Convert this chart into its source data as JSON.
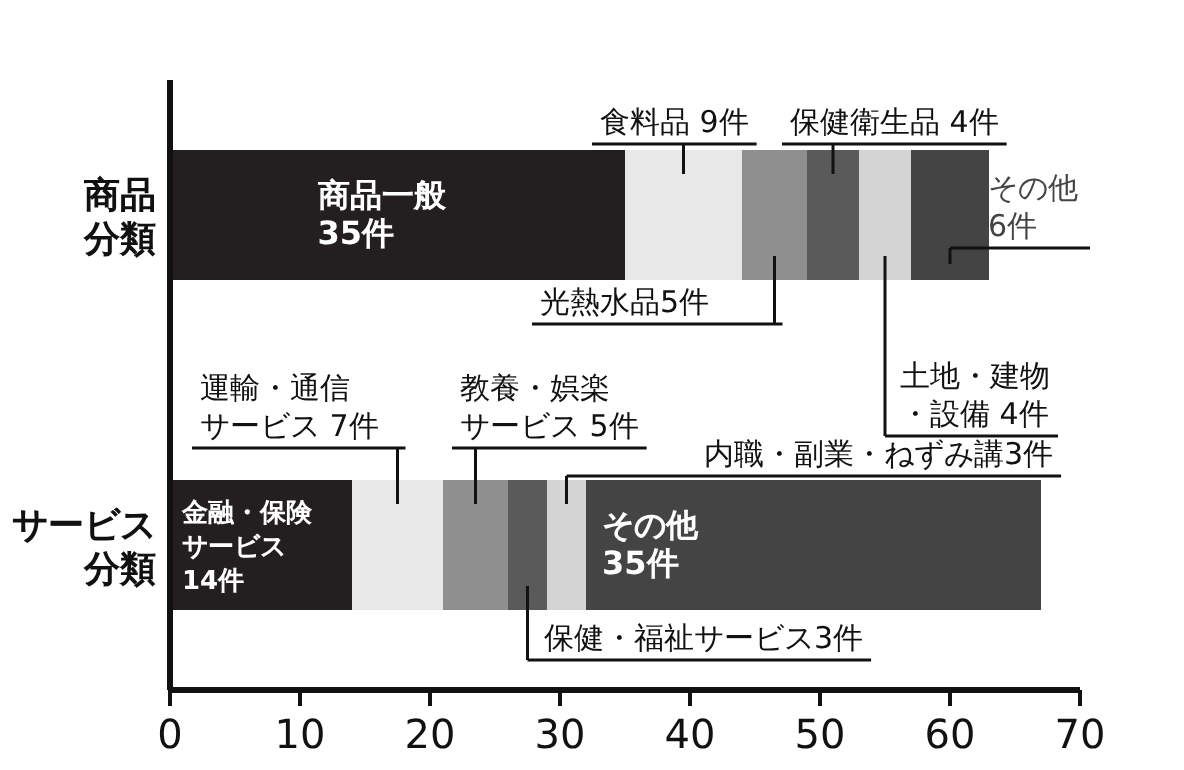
{
  "chart_data": {
    "type": "bar",
    "orientation": "horizontal",
    "stacked": true,
    "categories": [
      "商品分類",
      "サービス分類"
    ],
    "xlim": [
      0,
      70
    ],
    "xticks": [
      0,
      10,
      20,
      30,
      40,
      50,
      60,
      70
    ],
    "series": [
      {
        "name": "商品一般",
        "color": "#231f20",
        "values": [
          35,
          null
        ],
        "value_labels": [
          "35件",
          null
        ]
      },
      {
        "name": "食料品",
        "color": "#e8e8e8",
        "values": [
          9,
          null
        ],
        "value_labels": [
          "9件",
          null
        ]
      },
      {
        "name": "光熱水品",
        "color": "#8f8f8f",
        "values": [
          5,
          null
        ],
        "value_labels": [
          "5件",
          null
        ]
      },
      {
        "name": "保健衛生品",
        "color": "#5a5a5a",
        "values": [
          4,
          null
        ],
        "value_labels": [
          "4件",
          null
        ]
      },
      {
        "name": "土地・建物・設備",
        "color": "#d4d4d4",
        "values": [
          4,
          null
        ],
        "value_labels": [
          "4件",
          null
        ]
      },
      {
        "name": "その他",
        "color": "#444444",
        "values": [
          6,
          null
        ],
        "value_labels": [
          "6件",
          null
        ]
      },
      {
        "name": "金融・保険サービス",
        "color": "#231f20",
        "values": [
          null,
          14
        ],
        "value_labels": [
          null,
          "14件"
        ]
      },
      {
        "name": "運輸・通信サービス",
        "color": "#e8e8e8",
        "values": [
          null,
          7
        ],
        "value_labels": [
          null,
          "7件"
        ]
      },
      {
        "name": "教養・娯楽サービス",
        "color": "#8f8f8f",
        "values": [
          null,
          5
        ],
        "value_labels": [
          null,
          "5件"
        ]
      },
      {
        "name": "保健・福祉サービス",
        "color": "#5a5a5a",
        "values": [
          null,
          3
        ],
        "value_labels": [
          null,
          "3件"
        ]
      },
      {
        "name": "内職・副業・ねずみ講",
        "color": "#d4d4d4",
        "values": [
          null,
          3
        ],
        "value_labels": [
          null,
          "3件"
        ]
      },
      {
        "name": "その他",
        "color": "#444444",
        "values": [
          null,
          35
        ],
        "value_labels": [
          null,
          "35件"
        ]
      }
    ]
  }
}
